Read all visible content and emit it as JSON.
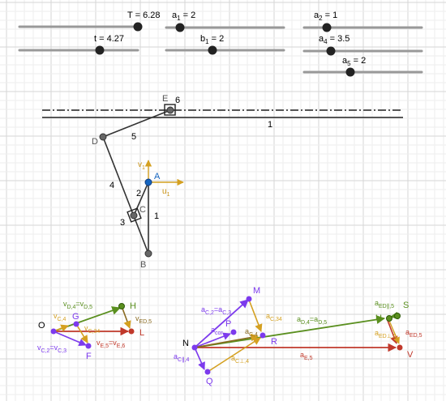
{
  "sliders": [
    {
      "id": "T",
      "label": "T = 6.28",
      "main": "T",
      "sub": "",
      "value": "6.28",
      "fraction": 1.0
    },
    {
      "id": "a1",
      "label": "a1 = 2",
      "main": "a",
      "sub": "1",
      "value": "2",
      "fraction": 0.2
    },
    {
      "id": "a2",
      "label": "a2 = 1",
      "main": "a",
      "sub": "2",
      "value": "1",
      "fraction": 0.26
    },
    {
      "id": "t",
      "label": "t = 4.27",
      "main": "t",
      "sub": "",
      "value": "4.27",
      "fraction": 0.68
    },
    {
      "id": "b1",
      "label": "b1 = 2",
      "main": "b",
      "sub": "1",
      "value": "2",
      "fraction": 0.4
    },
    {
      "id": "a4",
      "label": "a4 = 3.5",
      "main": "a",
      "sub": "4",
      "value": "3.5",
      "fraction": 0.29
    },
    {
      "id": "a5",
      "label": "a5 = 2",
      "main": "a",
      "sub": "5",
      "value": "2",
      "fraction": 0.47
    }
  ],
  "mechanism": {
    "points": [
      "A",
      "B",
      "C",
      "D",
      "E"
    ],
    "link_numbers": [
      "1",
      "2",
      "3",
      "4",
      "5",
      "6"
    ],
    "axis_labels": {
      "v": "v",
      "v_sub": "1",
      "u": "u",
      "u_sub": "1"
    }
  },
  "velocity_diagram": {
    "points": [
      "O",
      "G",
      "H",
      "L",
      "F"
    ],
    "labels": {
      "vD4": "v",
      "vD4_sub": "D,4",
      "vD4_eq": "=v",
      "vD4_eq_sub": "D,5",
      "vC4": "v",
      "vC4_sub": "C,4",
      "vC34": "v",
      "vC34_sub": "C,34",
      "vED5": "v",
      "vED5_sub": "ED,5",
      "vC2": "v",
      "vC2_sub": "C,2",
      "vC2_eq": "=v",
      "vC2_eq_sub": "C,3",
      "vE5": "v",
      "vE5_sub": "E,5",
      "vE5_eq": "=v",
      "vE5_eq_sub": "E,6"
    }
  },
  "acceleration_diagram": {
    "points": [
      "M",
      "P",
      "R",
      "N",
      "Q",
      "S",
      "U",
      "V"
    ],
    "labels": {
      "aC2": "a",
      "aC2_sub": "C,2",
      "aC2_eq": "=a",
      "aC2_eq_sub": "C,3",
      "aC34": "a",
      "aC34_sub": "C,34",
      "acor": "a",
      "acor_sub": "cor",
      "aC4": "a",
      "aC4_sub": "C,4",
      "aCpar4": "a",
      "aCpar4_sub": "C∥,4",
      "aCperp4": "a",
      "aCperp4_sub": "C⊥,4",
      "aD4": "a",
      "aD4_sub": "D,4",
      "aD4_eq": "=a",
      "aD4_eq_sub": "D,5",
      "aEDpar5": "a",
      "aEDpar5_sub": "ED∥,5",
      "aEDperp5": "a",
      "aEDperp5_sub": "ED⊥,5",
      "aED5": "a",
      "aED5_sub": "ED,5",
      "aE5": "a",
      "aE5_sub": "E,5"
    }
  },
  "colors": {
    "link": "#333333",
    "blue": "#1565c0",
    "purple": "#7c3aed",
    "olive": "#5a8f1f",
    "gold": "#d4a020",
    "red": "#c0392b",
    "grid_minor": "#ededed",
    "grid_major": "#d6d6d6"
  }
}
